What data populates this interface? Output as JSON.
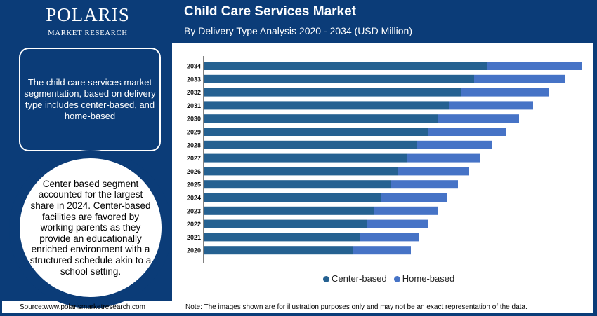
{
  "logo": {
    "main": "POLARIS",
    "sub": "MARKET RESEARCH"
  },
  "header": {
    "title": "Child Care Services Market",
    "subtitle": "By Delivery Type Analysis 2020 - 2034 (USD Million)"
  },
  "sidebar": {
    "info_text": "The child care services market segmentation, based on delivery type includes center-based, and home-based",
    "highlight_text": "Center based segment accounted for the largest share in 2024. Center-based facilities are favored by working parents as they provide an educationally enriched environment with a structured schedule akin to a school setting."
  },
  "footer": {
    "source": "Source:www.polarismarketresearch.com",
    "note": "Note: The images shown are for illustration purposes only and may not be an exact representation of the data."
  },
  "colors": {
    "center_based": "#256191",
    "home_based": "#4673c6",
    "brand": "#0b3c78"
  },
  "chart_data": {
    "type": "bar",
    "orientation": "horizontal",
    "stacked": true,
    "categories": [
      "2034",
      "2033",
      "2032",
      "2031",
      "2030",
      "2029",
      "2028",
      "2027",
      "2026",
      "2025",
      "2024",
      "2023",
      "2022",
      "2021",
      "2020"
    ],
    "series": [
      {
        "name": "Center-based",
        "values": [
          403,
          385,
          367,
          349,
          333,
          319,
          304,
          290,
          277,
          266,
          253,
          243,
          232,
          222,
          213
        ]
      },
      {
        "name": "Home-based",
        "values": [
          135,
          129,
          124,
          120,
          116,
          111,
          107,
          104,
          101,
          96,
          94,
          90,
          87,
          84,
          82
        ]
      }
    ],
    "xlim": [
      0,
      550
    ],
    "value_axis_labels": false,
    "grid": false,
    "legend": "bottom"
  }
}
